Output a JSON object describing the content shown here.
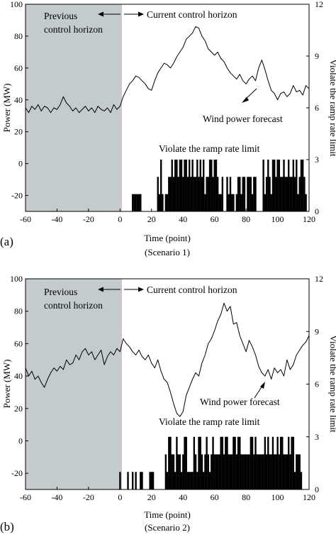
{
  "chart_data": [
    {
      "type": "line",
      "panel_label": "(a)",
      "xlabel": "Time (point)",
      "scenario_label": "(Scenario 1)",
      "ylabel_left": "Power (MW)",
      "ylabel_right": "Violate the ramp rate limit",
      "x_ticks": [
        -60,
        -40,
        -20,
        0,
        20,
        40,
        60,
        80,
        100,
        120
      ],
      "y_ticks_left": [
        -20,
        0,
        20,
        40,
        60,
        80,
        100
      ],
      "y_ticks_right": [
        0,
        3,
        6,
        9,
        12
      ],
      "xlim": [
        -60,
        120
      ],
      "ylim_left": [
        -30,
        100
      ],
      "ylim_right": [
        0,
        12
      ],
      "grid": false,
      "shaded_region": [
        -60,
        0
      ],
      "annotations": {
        "previous": "Previous\ncontrol horizon",
        "current": "Current control horizon",
        "forecast": "Wind power forecast",
        "violate": "Violate the ramp rate limit"
      },
      "series": [
        {
          "name": "Wind power forecast",
          "x": [
            -60,
            -58,
            -56,
            -54,
            -52,
            -50,
            -48,
            -46,
            -44,
            -42,
            -40,
            -38,
            -36,
            -34,
            -32,
            -30,
            -28,
            -26,
            -24,
            -22,
            -20,
            -18,
            -16,
            -14,
            -12,
            -10,
            -8,
            -6,
            -4,
            -2,
            0,
            2,
            4,
            6,
            8,
            10,
            12,
            14,
            16,
            18,
            20,
            22,
            24,
            26,
            28,
            30,
            32,
            34,
            36,
            38,
            40,
            42,
            44,
            46,
            48,
            50,
            52,
            54,
            56,
            58,
            60,
            62,
            64,
            66,
            68,
            70,
            72,
            74,
            76,
            78,
            80,
            82,
            84,
            86,
            88,
            90,
            92,
            94,
            96,
            98,
            100,
            102,
            104,
            106,
            108,
            110,
            112,
            114,
            116,
            118,
            120
          ],
          "values": [
            35,
            32,
            36,
            34,
            37,
            33,
            36,
            35,
            32,
            35,
            34,
            37,
            42,
            38,
            36,
            33,
            35,
            32,
            34,
            36,
            33,
            35,
            32,
            36,
            34,
            33,
            35,
            32,
            37,
            34,
            36,
            42,
            46,
            50,
            52,
            55,
            54,
            52,
            50,
            47,
            46,
            52,
            57,
            60,
            63,
            62,
            60,
            63,
            67,
            70,
            73,
            78,
            80,
            82,
            86,
            85,
            80,
            77,
            72,
            70,
            68,
            70,
            66,
            64,
            60,
            57,
            55,
            53,
            56,
            52,
            50,
            53,
            55,
            52,
            60,
            65,
            59,
            52,
            46,
            44,
            40,
            44,
            45,
            42,
            44,
            49,
            45,
            46,
            43,
            49,
            47
          ]
        }
      ],
      "violations": {
        "x": [
          8,
          9,
          10,
          11,
          12,
          13,
          24,
          25,
          26,
          27,
          29,
          30,
          31,
          32,
          33,
          34,
          35,
          36,
          37,
          38,
          39,
          40,
          41,
          42,
          43,
          44,
          45,
          46,
          47,
          48,
          49,
          50,
          51,
          52,
          53,
          54,
          55,
          56,
          57,
          58,
          59,
          60,
          61,
          62,
          63,
          64,
          65,
          68,
          69,
          70,
          71,
          72,
          74,
          75,
          76,
          77,
          78,
          79,
          81,
          82,
          83,
          84,
          85,
          86,
          91,
          92,
          93,
          94,
          95,
          96,
          97,
          98,
          99,
          100,
          101,
          102,
          103,
          104,
          105,
          106,
          107,
          108,
          109,
          110,
          111,
          112,
          113,
          114,
          115,
          116,
          117,
          118
        ],
        "values": [
          1,
          1,
          1,
          1,
          1,
          1,
          2,
          1,
          3,
          1,
          1,
          1,
          2,
          2,
          3,
          2,
          3,
          3,
          2,
          3,
          3,
          2,
          3,
          3,
          2,
          3,
          2,
          3,
          2,
          2,
          3,
          2,
          3,
          2,
          3,
          1,
          2,
          2,
          3,
          3,
          2,
          3,
          3,
          2,
          1,
          1,
          2,
          2,
          1,
          2,
          1,
          1,
          1,
          2,
          2,
          1,
          2,
          2,
          2,
          2,
          2,
          1,
          2,
          2,
          3,
          1,
          2,
          3,
          2,
          1,
          3,
          3,
          2,
          3,
          3,
          2,
          2,
          3,
          2,
          2,
          3,
          2,
          2,
          3,
          2,
          3,
          1,
          2,
          3,
          3,
          2,
          1
        ]
      }
    },
    {
      "type": "line",
      "panel_label": "(b)",
      "xlabel": "Time (point)",
      "scenario_label": "(Scenario 2)",
      "ylabel_left": "Power (MW)",
      "ylabel_right": "Violate the ramp rate limit",
      "x_ticks": [
        -60,
        -40,
        -20,
        0,
        20,
        40,
        60,
        80,
        100,
        120
      ],
      "y_ticks_left": [
        -20,
        0,
        20,
        40,
        60,
        80,
        100
      ],
      "y_ticks_right": [
        0,
        3,
        6,
        9,
        12
      ],
      "xlim": [
        -60,
        120
      ],
      "ylim_left": [
        -30,
        100
      ],
      "ylim_right": [
        0,
        12
      ],
      "grid": false,
      "shaded_region": [
        -60,
        0
      ],
      "annotations": {
        "previous": "Previous\ncontrol horizon",
        "current": "Current control horizon",
        "forecast": "Wind power forecast",
        "violate": "Violate the ramp rate limit"
      },
      "series": [
        {
          "name": "Wind power forecast",
          "x": [
            -60,
            -58,
            -56,
            -54,
            -52,
            -50,
            -48,
            -46,
            -44,
            -42,
            -40,
            -38,
            -36,
            -34,
            -32,
            -30,
            -28,
            -26,
            -24,
            -22,
            -20,
            -18,
            -16,
            -14,
            -12,
            -10,
            -8,
            -6,
            -4,
            -2,
            0,
            2,
            4,
            6,
            8,
            10,
            12,
            14,
            16,
            18,
            20,
            22,
            24,
            26,
            28,
            30,
            32,
            34,
            36,
            38,
            40,
            42,
            44,
            46,
            48,
            50,
            52,
            54,
            56,
            58,
            60,
            62,
            64,
            66,
            68,
            70,
            72,
            74,
            76,
            78,
            80,
            82,
            84,
            86,
            88,
            90,
            92,
            94,
            96,
            98,
            100,
            102,
            104,
            106,
            108,
            110,
            112,
            114,
            116,
            118,
            120
          ],
          "values": [
            45,
            40,
            43,
            38,
            40,
            36,
            33,
            38,
            42,
            45,
            43,
            46,
            44,
            50,
            47,
            48,
            53,
            50,
            55,
            57,
            53,
            55,
            50,
            53,
            56,
            47,
            52,
            55,
            53,
            57,
            55,
            63,
            60,
            58,
            55,
            53,
            56,
            52,
            50,
            53,
            48,
            45,
            50,
            43,
            38,
            36,
            30,
            23,
            17,
            15,
            18,
            28,
            33,
            38,
            42,
            40,
            48,
            53,
            60,
            63,
            68,
            74,
            78,
            85,
            80,
            83,
            72,
            73,
            65,
            60,
            55,
            62,
            58,
            53,
            46,
            42,
            40,
            44,
            38,
            45,
            42,
            44,
            40,
            50,
            44,
            47,
            53,
            56,
            59,
            61,
            65
          ]
        }
      ],
      "violations": {
        "x": [
          0,
          5,
          8,
          10,
          13,
          14,
          19,
          20,
          21,
          29,
          30,
          31,
          32,
          33,
          34,
          35,
          36,
          37,
          38,
          39,
          40,
          41,
          42,
          43,
          44,
          45,
          46,
          47,
          48,
          49,
          50,
          51,
          52,
          53,
          54,
          55,
          56,
          57,
          58,
          59,
          60,
          61,
          62,
          63,
          64,
          65,
          66,
          67,
          68,
          69,
          70,
          71,
          72,
          73,
          74,
          75,
          76,
          77,
          78,
          79,
          80,
          81,
          82,
          83,
          84,
          85,
          86,
          87,
          88,
          89,
          90,
          91,
          92,
          93,
          94,
          95,
          96,
          97,
          98,
          99,
          100,
          101,
          102,
          103,
          104,
          105,
          106,
          107,
          108,
          109,
          110,
          111,
          112,
          113,
          114,
          115
        ],
        "values": [
          1,
          1,
          1,
          1,
          1,
          1,
          1,
          1,
          1,
          2,
          1,
          3,
          3,
          2,
          2,
          1,
          3,
          2,
          2,
          1,
          2,
          3,
          3,
          1,
          1,
          1,
          1,
          3,
          2,
          1,
          3,
          3,
          2,
          1,
          2,
          3,
          2,
          1,
          2,
          3,
          2,
          2,
          2,
          2,
          3,
          3,
          2,
          3,
          3,
          2,
          2,
          2,
          3,
          3,
          2,
          3,
          3,
          2,
          2,
          2,
          2,
          2,
          2,
          3,
          3,
          2,
          3,
          2,
          2,
          2,
          2,
          2,
          3,
          2,
          3,
          2,
          2,
          3,
          2,
          2,
          3,
          2,
          3,
          3,
          2,
          2,
          2,
          3,
          2,
          3,
          3,
          1,
          2,
          2,
          2,
          1
        ]
      }
    }
  ]
}
